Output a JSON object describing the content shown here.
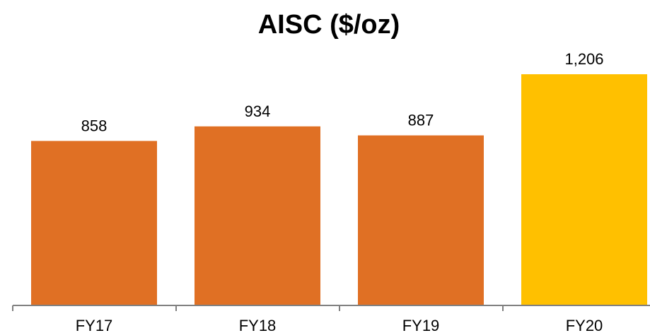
{
  "chart_data": {
    "type": "bar",
    "title": "AISC ($/oz)",
    "xlabel": "",
    "ylabel": "",
    "categories": [
      "FY17",
      "FY18",
      "FY19",
      "FY20"
    ],
    "values": [
      858,
      934,
      887,
      1206
    ],
    "value_labels": [
      "858",
      "934",
      "887",
      "1,206"
    ],
    "ylim": [
      0,
      1300
    ],
    "grid": false,
    "legend": "none",
    "colors": [
      "#E07024",
      "#E07024",
      "#E07024",
      "#FFC000"
    ]
  },
  "colors": {
    "bar": "#E07024",
    "highlight": "#FFC000",
    "axis": "#808080"
  }
}
